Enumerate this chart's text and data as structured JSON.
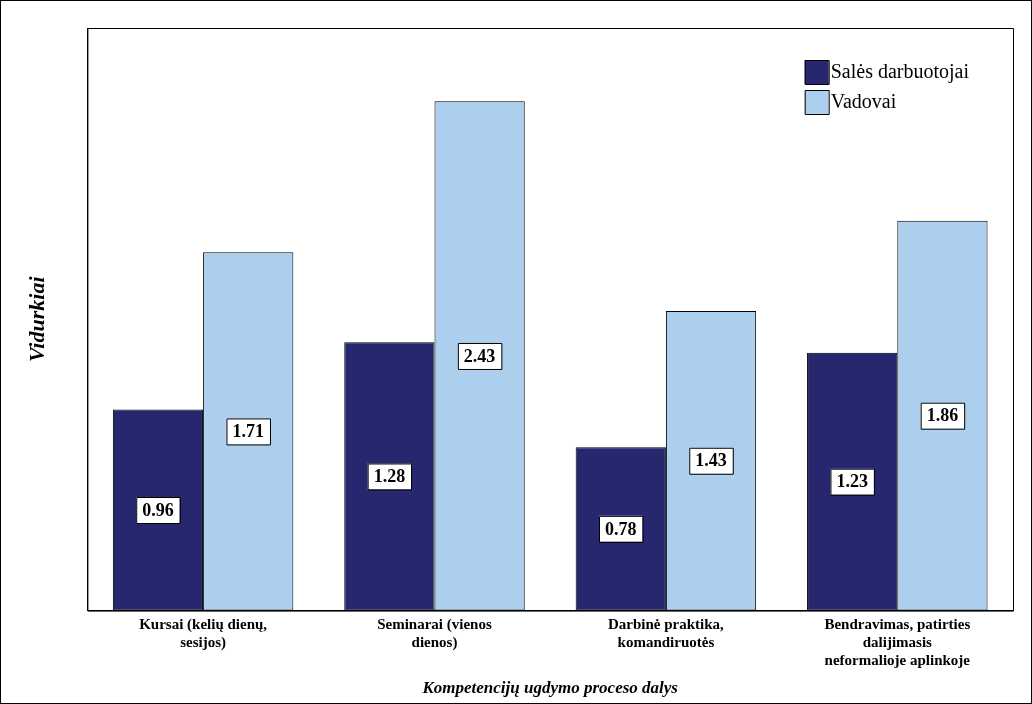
{
  "chart_data": {
    "type": "bar",
    "xlabel": "Kompetencijų ugdymo proceso dalys",
    "ylabel": "Vidurkiai",
    "categories": [
      "Kursai (kelių dienų, sesijos)",
      "Seminarai (vienos dienos)",
      "Darbinė praktika, komandiruotės",
      "Bendravimas, patirties dalijimasis neformalioje aplinkoje"
    ],
    "series": [
      {
        "name": "Salės darbuotojai",
        "color": "#26276e",
        "values": [
          0.96,
          1.28,
          0.78,
          1.23
        ]
      },
      {
        "name": "Vadovai",
        "color": "#abcfec",
        "values": [
          1.71,
          2.43,
          1.43,
          1.86
        ]
      }
    ],
    "ylim": [
      0,
      2.78
    ],
    "data_labels": true,
    "legend": "top right",
    "grid": false
  }
}
